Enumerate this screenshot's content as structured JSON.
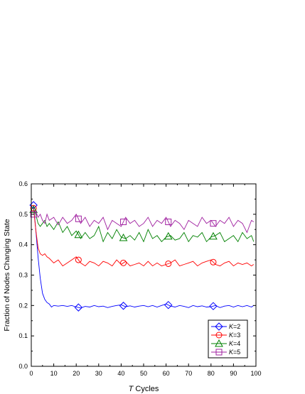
{
  "chart_data": {
    "type": "line",
    "xlabel_italic": "T",
    "xlabel_rest": " Cycles",
    "ylabel": "Fraction of Nodes Changing State",
    "xlim": [
      0,
      100
    ],
    "ylim": [
      0,
      0.6
    ],
    "xticks": [
      0,
      10,
      20,
      30,
      40,
      50,
      60,
      70,
      80,
      90,
      100
    ],
    "yticks": [
      "0.0",
      "0.1",
      "0.2",
      "0.3",
      "0.4",
      "0.5",
      "0.6"
    ],
    "legend_placement": "bottom-right",
    "series": [
      {
        "name": "K=2",
        "name_italic": "K",
        "name_rest": "=2",
        "color": "#0000ff",
        "marker": "diamond",
        "markers_x": [
          1,
          21,
          41,
          61,
          81
        ],
        "x": [
          1,
          2,
          3,
          4,
          5,
          6,
          7,
          8,
          9,
          10,
          12,
          14,
          16,
          18,
          20,
          22,
          24,
          26,
          28,
          30,
          32,
          34,
          36,
          38,
          40,
          42,
          44,
          46,
          48,
          50,
          52,
          54,
          56,
          58,
          60,
          62,
          64,
          66,
          68,
          70,
          72,
          74,
          76,
          78,
          80,
          82,
          84,
          86,
          88,
          90,
          92,
          94,
          96,
          98,
          99
        ],
        "y": [
          0.53,
          0.45,
          0.36,
          0.29,
          0.24,
          0.22,
          0.21,
          0.205,
          0.195,
          0.2,
          0.198,
          0.2,
          0.197,
          0.2,
          0.195,
          0.192,
          0.197,
          0.195,
          0.2,
          0.196,
          0.198,
          0.193,
          0.197,
          0.2,
          0.202,
          0.196,
          0.199,
          0.195,
          0.198,
          0.2,
          0.196,
          0.2,
          0.195,
          0.2,
          0.205,
          0.198,
          0.195,
          0.2,
          0.197,
          0.193,
          0.2,
          0.196,
          0.199,
          0.195,
          0.196,
          0.2,
          0.193,
          0.198,
          0.2,
          0.195,
          0.2,
          0.196,
          0.2,
          0.195,
          0.2
        ]
      },
      {
        "name": "K=3",
        "name_italic": "K",
        "name_rest": "=3",
        "color": "#ff0000",
        "marker": "circle",
        "markers_x": [
          1,
          21,
          41,
          61,
          81
        ],
        "x": [
          1,
          2,
          3,
          4,
          5,
          6,
          7,
          8,
          10,
          12,
          14,
          16,
          18,
          20,
          22,
          24,
          26,
          28,
          30,
          32,
          34,
          36,
          38,
          40,
          42,
          44,
          46,
          48,
          50,
          52,
          54,
          56,
          58,
          60,
          62,
          64,
          66,
          68,
          70,
          72,
          74,
          76,
          78,
          80,
          82,
          84,
          86,
          88,
          90,
          92,
          94,
          96,
          98,
          99
        ],
        "y": [
          0.52,
          0.45,
          0.39,
          0.37,
          0.365,
          0.37,
          0.36,
          0.355,
          0.34,
          0.35,
          0.33,
          0.34,
          0.35,
          0.36,
          0.34,
          0.33,
          0.345,
          0.34,
          0.33,
          0.345,
          0.34,
          0.33,
          0.35,
          0.335,
          0.345,
          0.33,
          0.335,
          0.34,
          0.33,
          0.345,
          0.33,
          0.34,
          0.33,
          0.335,
          0.34,
          0.35,
          0.33,
          0.335,
          0.34,
          0.345,
          0.33,
          0.34,
          0.345,
          0.35,
          0.335,
          0.33,
          0.34,
          0.345,
          0.33,
          0.34,
          0.335,
          0.34,
          0.33,
          0.335
        ]
      },
      {
        "name": "K=4",
        "name_italic": "K",
        "name_rest": "=4",
        "color": "#008000",
        "marker": "triangle",
        "markers_x": [
          1,
          21,
          41,
          61,
          81
        ],
        "x": [
          1,
          2,
          3,
          4,
          5,
          6,
          7,
          8,
          10,
          12,
          14,
          16,
          18,
          20,
          22,
          24,
          26,
          28,
          30,
          32,
          34,
          36,
          38,
          40,
          42,
          44,
          46,
          48,
          50,
          52,
          54,
          56,
          58,
          60,
          62,
          64,
          66,
          68,
          70,
          72,
          74,
          76,
          78,
          80,
          82,
          84,
          86,
          88,
          90,
          92,
          94,
          96,
          98,
          99
        ],
        "y": [
          0.515,
          0.5,
          0.47,
          0.46,
          0.47,
          0.48,
          0.46,
          0.47,
          0.45,
          0.475,
          0.44,
          0.46,
          0.43,
          0.445,
          0.42,
          0.44,
          0.42,
          0.43,
          0.46,
          0.41,
          0.44,
          0.42,
          0.45,
          0.425,
          0.42,
          0.43,
          0.415,
          0.44,
          0.41,
          0.45,
          0.42,
          0.43,
          0.41,
          0.425,
          0.43,
          0.415,
          0.42,
          0.44,
          0.41,
          0.43,
          0.425,
          0.44,
          0.41,
          0.425,
          0.43,
          0.44,
          0.41,
          0.42,
          0.43,
          0.41,
          0.44,
          0.42,
          0.43,
          0.41
        ]
      },
      {
        "name": "K=5",
        "name_italic": "K",
        "name_rest": "=5",
        "color": "#a020a0",
        "marker": "square",
        "markers_x": [
          1,
          21,
          41,
          61,
          81
        ],
        "x": [
          1,
          2,
          3,
          4,
          5,
          6,
          7,
          8,
          10,
          12,
          14,
          16,
          18,
          20,
          22,
          24,
          26,
          28,
          30,
          32,
          34,
          36,
          38,
          40,
          42,
          44,
          46,
          48,
          50,
          52,
          54,
          56,
          58,
          60,
          62,
          64,
          66,
          68,
          70,
          72,
          74,
          76,
          78,
          80,
          82,
          84,
          86,
          88,
          90,
          92,
          94,
          96,
          98,
          99
        ],
        "y": [
          0.5,
          0.51,
          0.49,
          0.5,
          0.48,
          0.47,
          0.5,
          0.48,
          0.49,
          0.465,
          0.49,
          0.47,
          0.48,
          0.5,
          0.47,
          0.49,
          0.46,
          0.48,
          0.47,
          0.49,
          0.45,
          0.48,
          0.47,
          0.46,
          0.49,
          0.47,
          0.48,
          0.46,
          0.47,
          0.49,
          0.46,
          0.48,
          0.47,
          0.49,
          0.46,
          0.48,
          0.47,
          0.45,
          0.48,
          0.47,
          0.46,
          0.49,
          0.47,
          0.48,
          0.46,
          0.48,
          0.47,
          0.49,
          0.46,
          0.48,
          0.47,
          0.44,
          0.48,
          0.475
        ]
      }
    ]
  }
}
